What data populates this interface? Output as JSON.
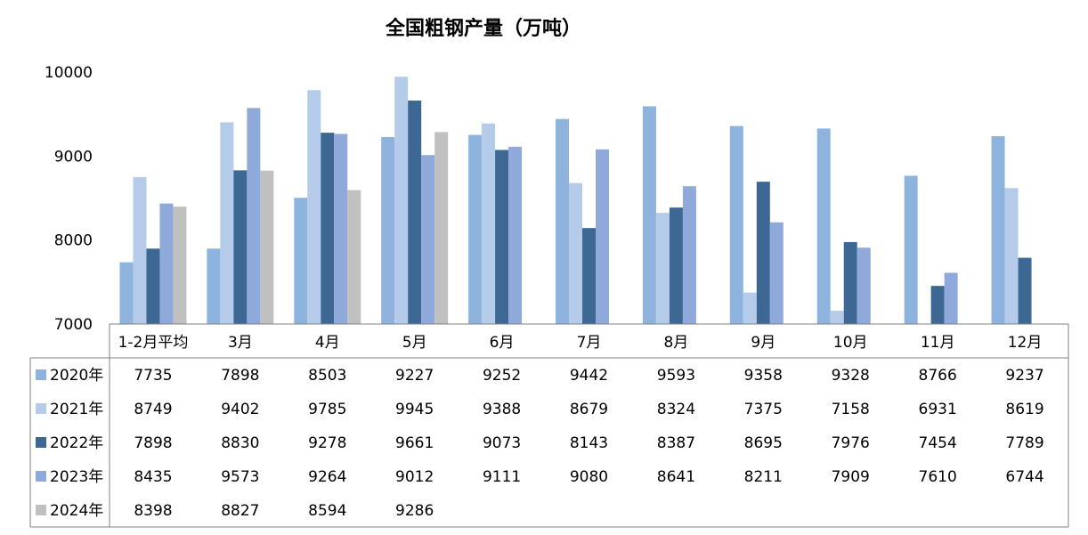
{
  "chart_data": {
    "type": "bar",
    "title": "全国粗钢产量（万吨）",
    "xlabel": "",
    "ylabel": "",
    "ylim": [
      7000,
      10000
    ],
    "yticks": [
      "7000",
      "8000",
      "9000",
      "10000"
    ],
    "categories": [
      "1-2月平均",
      "3月",
      "4月",
      "5月",
      "6月",
      "7月",
      "8月",
      "9月",
      "10月",
      "11月",
      "12月"
    ],
    "legend_position": "data-table-left",
    "grid": false,
    "series": [
      {
        "name": "2020年",
        "color": "#8EB4DE",
        "values": [
          7735,
          7898,
          8503,
          9227,
          9252,
          9442,
          9593,
          9358,
          9328,
          8766,
          9237
        ]
      },
      {
        "name": "2021年",
        "color": "#B4CCE9",
        "values": [
          8749,
          9402,
          9785,
          9945,
          9388,
          8679,
          8324,
          7375,
          7158,
          6931,
          8619
        ]
      },
      {
        "name": "2022年",
        "color": "#3E6894",
        "values": [
          7898,
          8830,
          9278,
          9661,
          9073,
          8143,
          8387,
          8695,
          7976,
          7454,
          7789
        ]
      },
      {
        "name": "2023年",
        "color": "#8FA9DB",
        "values": [
          8435,
          9573,
          9264,
          9012,
          9111,
          9080,
          8641,
          8211,
          7909,
          7610,
          6744
        ]
      },
      {
        "name": "2024年",
        "color": "#C0C0C0",
        "values": [
          8398,
          8827,
          8594,
          9286,
          null,
          null,
          null,
          null,
          null,
          null,
          null
        ]
      }
    ]
  }
}
